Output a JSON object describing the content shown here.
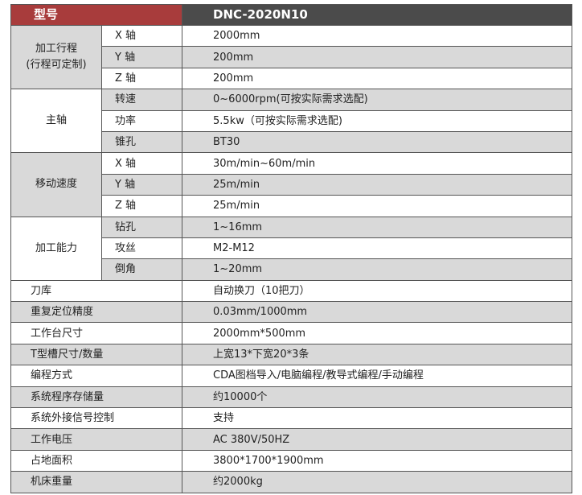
{
  "header": {
    "label": "型号",
    "model": "DNC-2020N10"
  },
  "groups": [
    {
      "label": "加工行程",
      "label2": "(行程可定制)",
      "rows": [
        [
          "X 轴",
          "2000mm"
        ],
        [
          "Y 轴",
          "200mm"
        ],
        [
          "Z 轴",
          "200mm"
        ]
      ]
    },
    {
      "label": "主轴",
      "label2": "",
      "rows": [
        [
          "转速",
          "0~6000rpm(可按实际需求选配)"
        ],
        [
          "功率",
          "5.5kw（可按实际需求选配)"
        ],
        [
          "锥孔",
          "BT30"
        ]
      ]
    },
    {
      "label": "移动速度",
      "label2": "",
      "rows": [
        [
          "X 轴",
          "30m/min~60m/min"
        ],
        [
          "Y 轴",
          "25m/min"
        ],
        [
          "Z 轴",
          "25m/min"
        ]
      ]
    },
    {
      "label": "加工能力",
      "label2": "",
      "rows": [
        [
          "钻孔",
          "1~16mm"
        ],
        [
          "攻丝",
          "M2-M12"
        ],
        [
          "倒角",
          "1~20mm"
        ]
      ]
    }
  ],
  "rows": [
    [
      "刀库",
      "自动换刀（10把刀）"
    ],
    [
      "重复定位精度",
      "0.03mm/1000mm"
    ],
    [
      "工作台尺寸",
      "2000mm*500mm"
    ],
    [
      "T型槽尺寸/数量",
      "上宽13*下宽20*3条"
    ],
    [
      "编程方式",
      "CDA图档导入/电脑编程/教导式编程/手动编程"
    ],
    [
      "系统程序存储量",
      "约10000个"
    ],
    [
      "系统外接信号控制",
      "支持"
    ],
    [
      "工作电压",
      "AC 380V/50HZ"
    ],
    [
      "占地面积",
      "3800*1700*1900mm"
    ],
    [
      "机床重量",
      "约2000kg"
    ]
  ],
  "colors": {
    "header_label": "#a83c3c",
    "header_model": "#4b4b4b",
    "stripe": "#d9d9d9"
  }
}
